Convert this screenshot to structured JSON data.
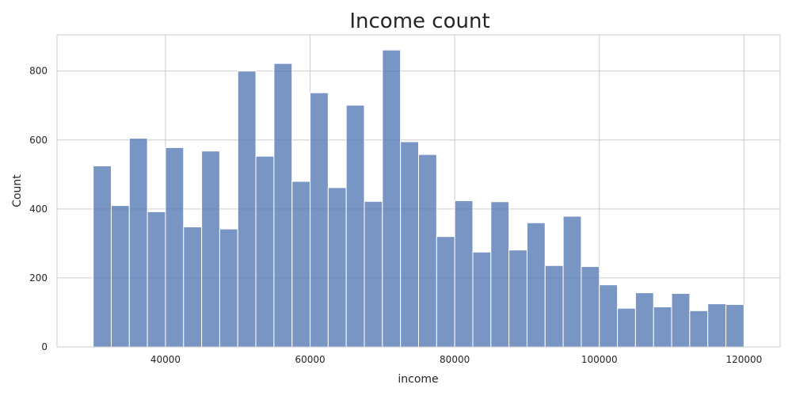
{
  "chart_data": {
    "type": "bar",
    "title": "Income count",
    "xlabel": "income",
    "ylabel": "Count",
    "xlim": [
      25000,
      125000
    ],
    "ylim": [
      0,
      905
    ],
    "grid": true,
    "bar_color": "#4c72b0",
    "x_ticks": [
      40000,
      60000,
      80000,
      100000,
      120000
    ],
    "y_ticks": [
      0,
      200,
      400,
      600,
      800
    ],
    "bin_start": 30000,
    "bin_end": 120000,
    "values": [
      525,
      410,
      605,
      392,
      578,
      348,
      568,
      342,
      800,
      553,
      822,
      480,
      737,
      462,
      701,
      422,
      861,
      595,
      558,
      320,
      424,
      275,
      421,
      281,
      360,
      236,
      379,
      233,
      180,
      112,
      157,
      116,
      155,
      105,
      125,
      123
    ]
  }
}
